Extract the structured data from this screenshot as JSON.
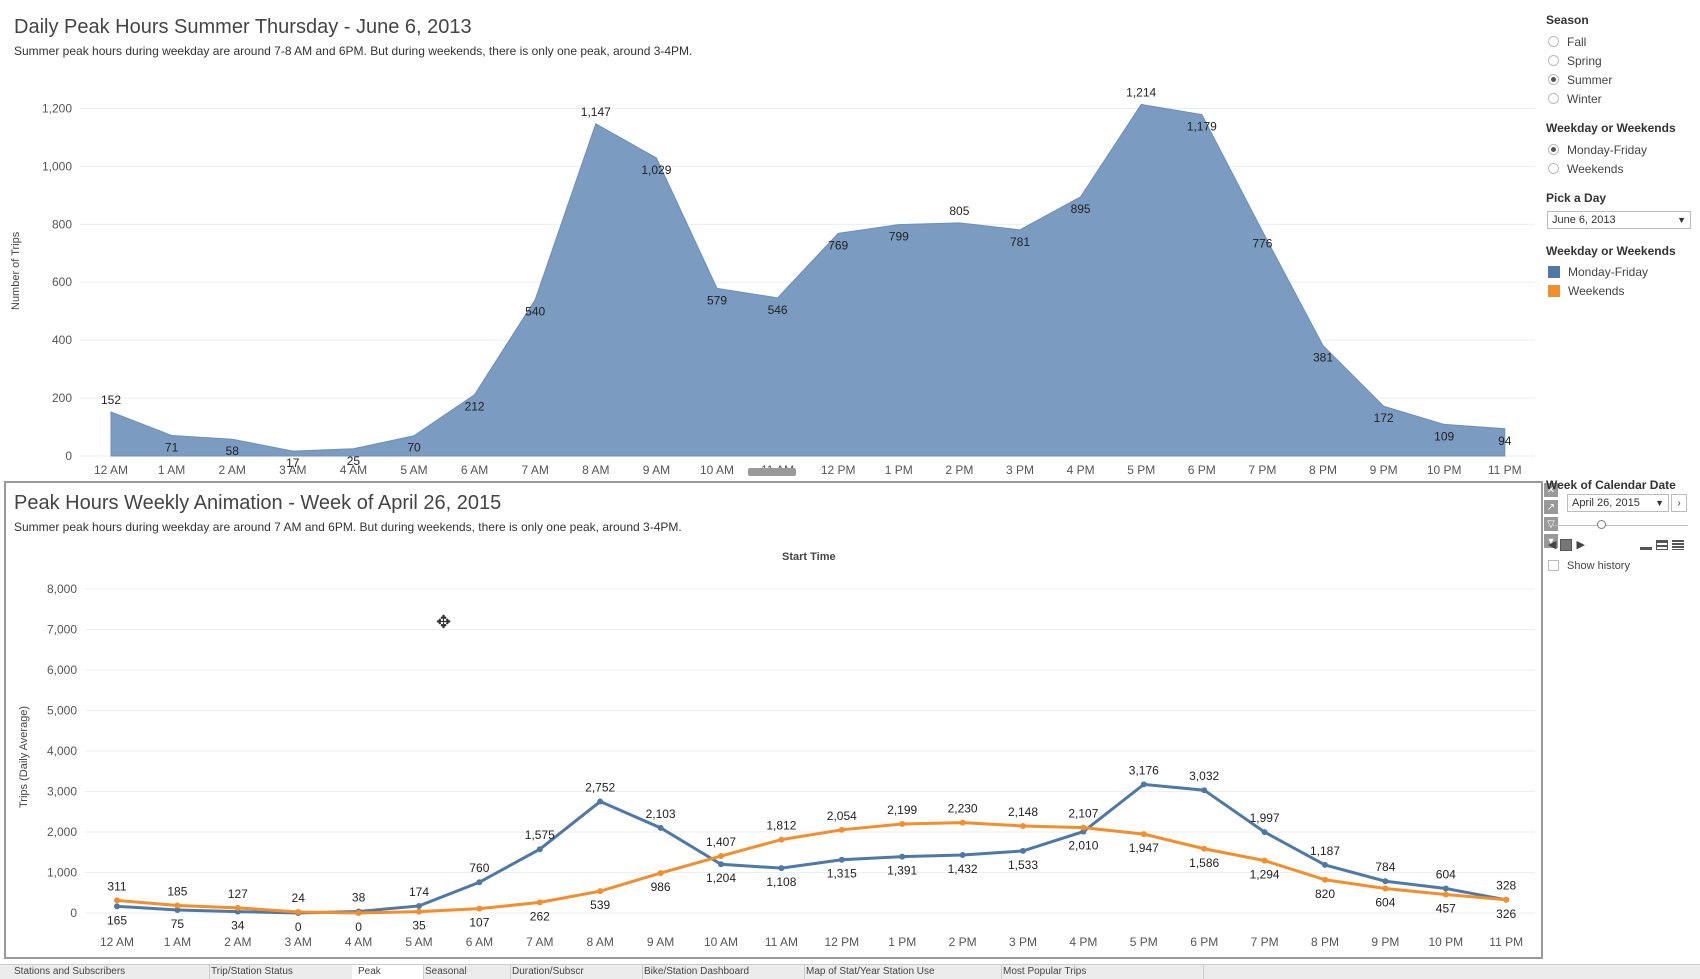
{
  "top": {
    "title": "Daily Peak Hours  Summer Thursday - June 6, 2013",
    "subtitle": "Summer peak hours during weekday are around 7-8 AM and 6PM. But during weekends, there is only one peak, around 3-4PM.",
    "ylabel": "Number of Trips"
  },
  "bottom": {
    "title": "Peak Hours Weekly Animation - Week of  April 26, 2015",
    "subtitle": "Summer peak hours during weekday are around 7 AM and 6PM. But during weekends, there is only one peak, around 3-4PM.",
    "header": "Start Time",
    "ylabel": "Trips (Daily Average)"
  },
  "sidebar": {
    "season_header": "Season",
    "season_options": [
      "Fall",
      "Spring",
      "Summer",
      "Winter"
    ],
    "season_selected": "Summer",
    "weekday_header": "Weekday or Weekends",
    "weekday_options": [
      "Monday-Friday",
      "Weekends"
    ],
    "weekday_selected": "Monday-Friday",
    "pick_day_header": "Pick a Day",
    "pick_day_value": "June 6, 2013",
    "legend_header": "Weekday or Weekends",
    "legend": [
      {
        "label": "Monday-Friday",
        "color": "#4e79a7"
      },
      {
        "label": "Weekends",
        "color": "#f28e2b"
      }
    ],
    "week_header": "Week of Calendar Date",
    "week_value": "April 26, 2015",
    "show_history": "Show history"
  },
  "tabs": [
    {
      "label": "Stations and Subscribers",
      "active": false
    },
    {
      "label": "Trip/Station Status",
      "active": false
    },
    {
      "label": "Peak",
      "active": true
    },
    {
      "label": "Seasonal",
      "active": false
    },
    {
      "label": "Duration/Subscr",
      "active": false
    },
    {
      "label": "Bike/Station Dashboard",
      "active": false
    },
    {
      "label": "Map of Stat/Year Station Use",
      "active": false
    },
    {
      "label": "Most Popular Trips",
      "active": false
    }
  ],
  "chart_data": [
    {
      "type": "area",
      "x": [
        "12 AM",
        "1 AM",
        "2 AM",
        "3 AM",
        "4 AM",
        "5 AM",
        "6 AM",
        "7 AM",
        "8 AM",
        "9 AM",
        "10 AM",
        "11 AM",
        "12 PM",
        "1 PM",
        "2 PM",
        "3 PM",
        "4 PM",
        "5 PM",
        "6 PM",
        "7 PM",
        "8 PM",
        "9 PM",
        "10 PM",
        "11 PM"
      ],
      "series": [
        {
          "name": "Monday-Friday",
          "color": "#7b9cc0",
          "values": [
            152,
            71,
            58,
            17,
            25,
            70,
            212,
            540,
            1147,
            1029,
            579,
            546,
            769,
            799,
            805,
            781,
            895,
            1214,
            1179,
            776,
            381,
            172,
            109,
            94
          ]
        }
      ],
      "yticks": [
        "0",
        "200",
        "400",
        "600",
        "800",
        "1,000",
        "1,200"
      ],
      "ylim": [
        0,
        1250
      ],
      "ylabel": "Number of Trips",
      "grid": true
    },
    {
      "type": "line",
      "x": [
        "12 AM",
        "1 AM",
        "2 AM",
        "3 AM",
        "4 AM",
        "5 AM",
        "6 AM",
        "7 AM",
        "8 AM",
        "9 AM",
        "10 AM",
        "11 AM",
        "12 PM",
        "1 PM",
        "2 PM",
        "3 PM",
        "4 PM",
        "5 PM",
        "6 PM",
        "7 PM",
        "8 PM",
        "9 PM",
        "10 PM",
        "11 PM"
      ],
      "series": [
        {
          "name": "Monday-Friday",
          "color": "#4e79a7",
          "values": [
            165,
            75,
            34,
            0,
            38,
            174,
            760,
            1575,
            2752,
            2103,
            1204,
            1108,
            1315,
            1391,
            1432,
            1533,
            2010,
            3176,
            3032,
            1997,
            1187,
            784,
            604,
            326
          ]
        },
        {
          "name": "Weekends",
          "color": "#f28e2b",
          "values": [
            311,
            185,
            127,
            24,
            0,
            35,
            107,
            262,
            539,
            986,
            1407,
            1812,
            2054,
            2199,
            2230,
            2148,
            2107,
            1947,
            1586,
            1294,
            820,
            604,
            457,
            328
          ]
        }
      ],
      "yticks": [
        "0",
        "1,000",
        "2,000",
        "3,000",
        "4,000",
        "5,000",
        "6,000",
        "7,000",
        "8,000"
      ],
      "ylim": [
        0,
        8000
      ],
      "ylabel": "Trips (Daily Average)",
      "grid": true
    }
  ]
}
